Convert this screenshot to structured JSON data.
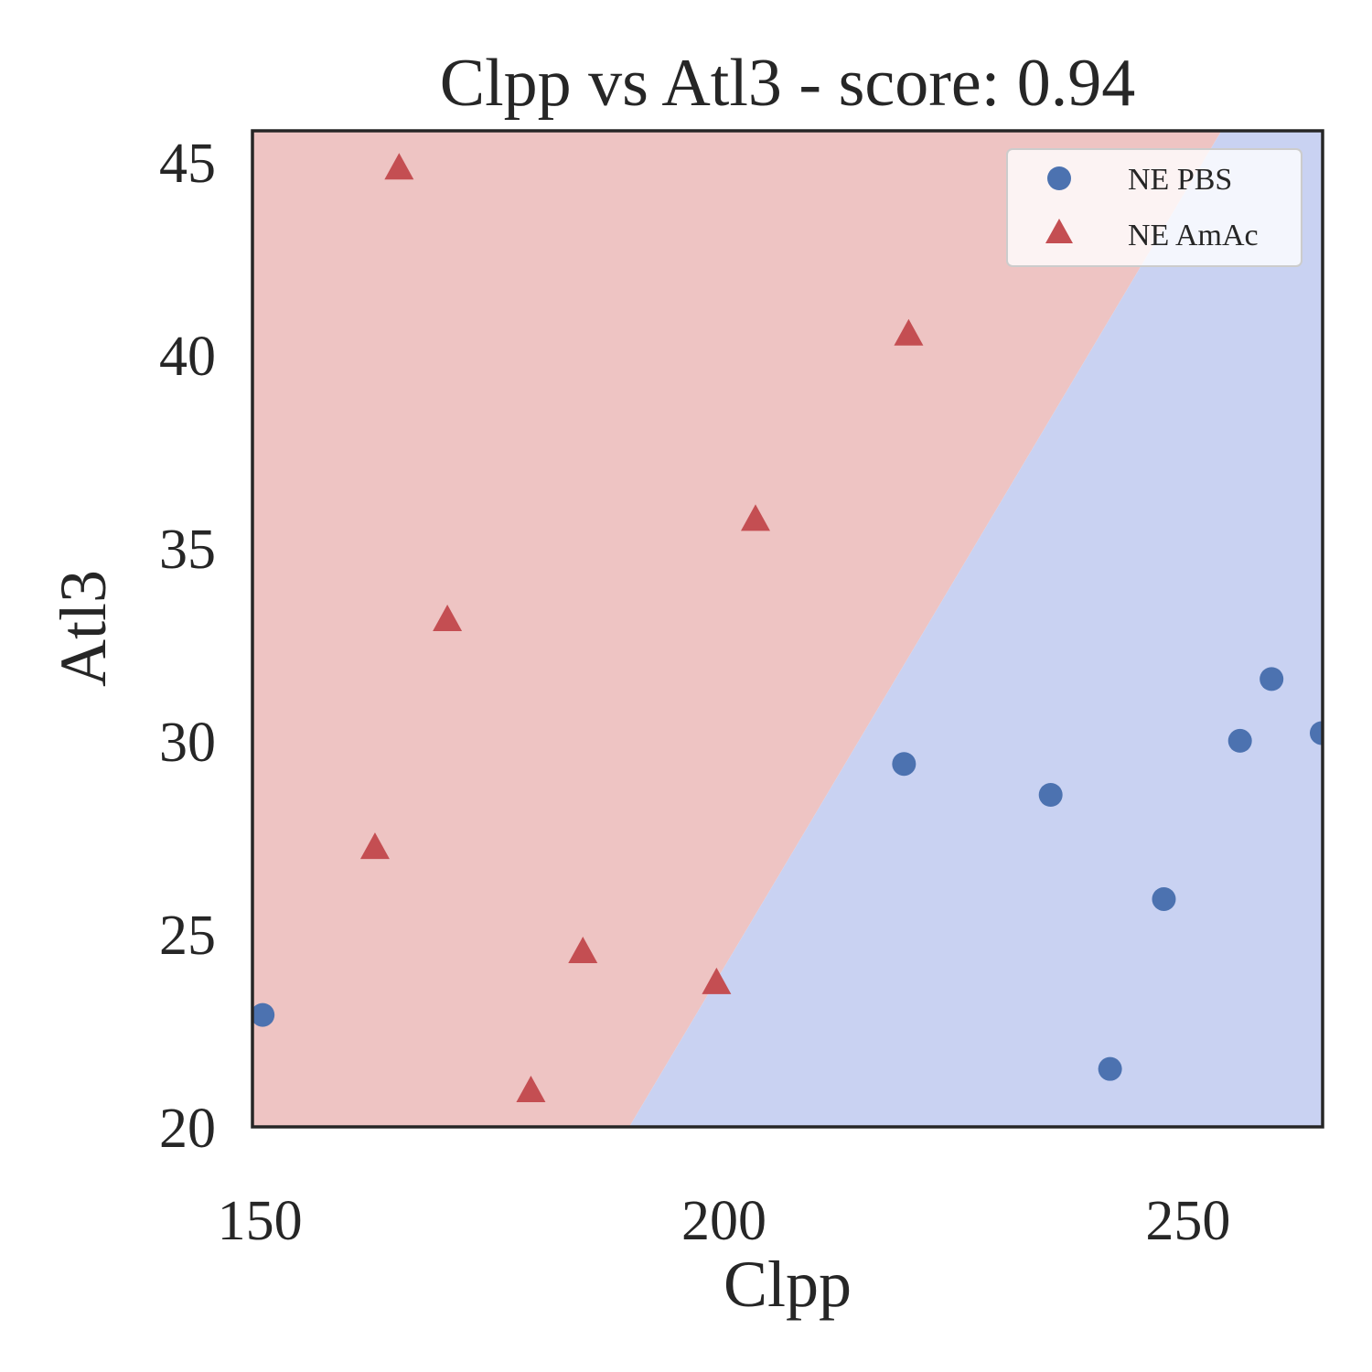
{
  "chart_data": {
    "type": "scatter",
    "title": "Clpp vs Atl3 - score: 0.94",
    "xlabel": "Clpp",
    "ylabel": "Atl3",
    "xlim": [
      149.2,
      264.5
    ],
    "ylim": [
      20,
      45.8
    ],
    "xticks": [
      "150",
      "200",
      "250"
    ],
    "xtick_values": [
      150,
      200,
      250
    ],
    "yticks": [
      "20",
      "25",
      "30",
      "35",
      "40",
      "45"
    ],
    "ytick_values": [
      20,
      25,
      30,
      35,
      40,
      45
    ],
    "grid": false,
    "legend_position": "top-right",
    "decision_boundary": {
      "points": [
        [
          189.8,
          20
        ],
        [
          253.6,
          45.8
        ]
      ]
    },
    "region_colors": {
      "NE AmAc": "#eec4c3",
      "NE PBS": "#c9d2f2"
    },
    "series": [
      {
        "name": "NE PBS",
        "marker": "circle",
        "color": "#4c72b0",
        "points": [
          [
            150.3,
            22.9
          ],
          [
            219.4,
            29.4
          ],
          [
            235.2,
            28.6
          ],
          [
            247.4,
            25.9
          ],
          [
            241.6,
            21.5
          ],
          [
            255.6,
            30.0
          ],
          [
            259.0,
            31.6
          ],
          [
            264.4,
            30.2
          ]
        ]
      },
      {
        "name": "NE AmAc",
        "marker": "triangle",
        "color": "#c44e52",
        "points": [
          [
            165.0,
            44.8
          ],
          [
            219.9,
            40.5
          ],
          [
            203.4,
            35.7
          ],
          [
            170.2,
            33.1
          ],
          [
            162.4,
            27.2
          ],
          [
            184.8,
            24.5
          ],
          [
            199.2,
            23.7
          ],
          [
            179.2,
            20.9
          ]
        ]
      }
    ]
  }
}
